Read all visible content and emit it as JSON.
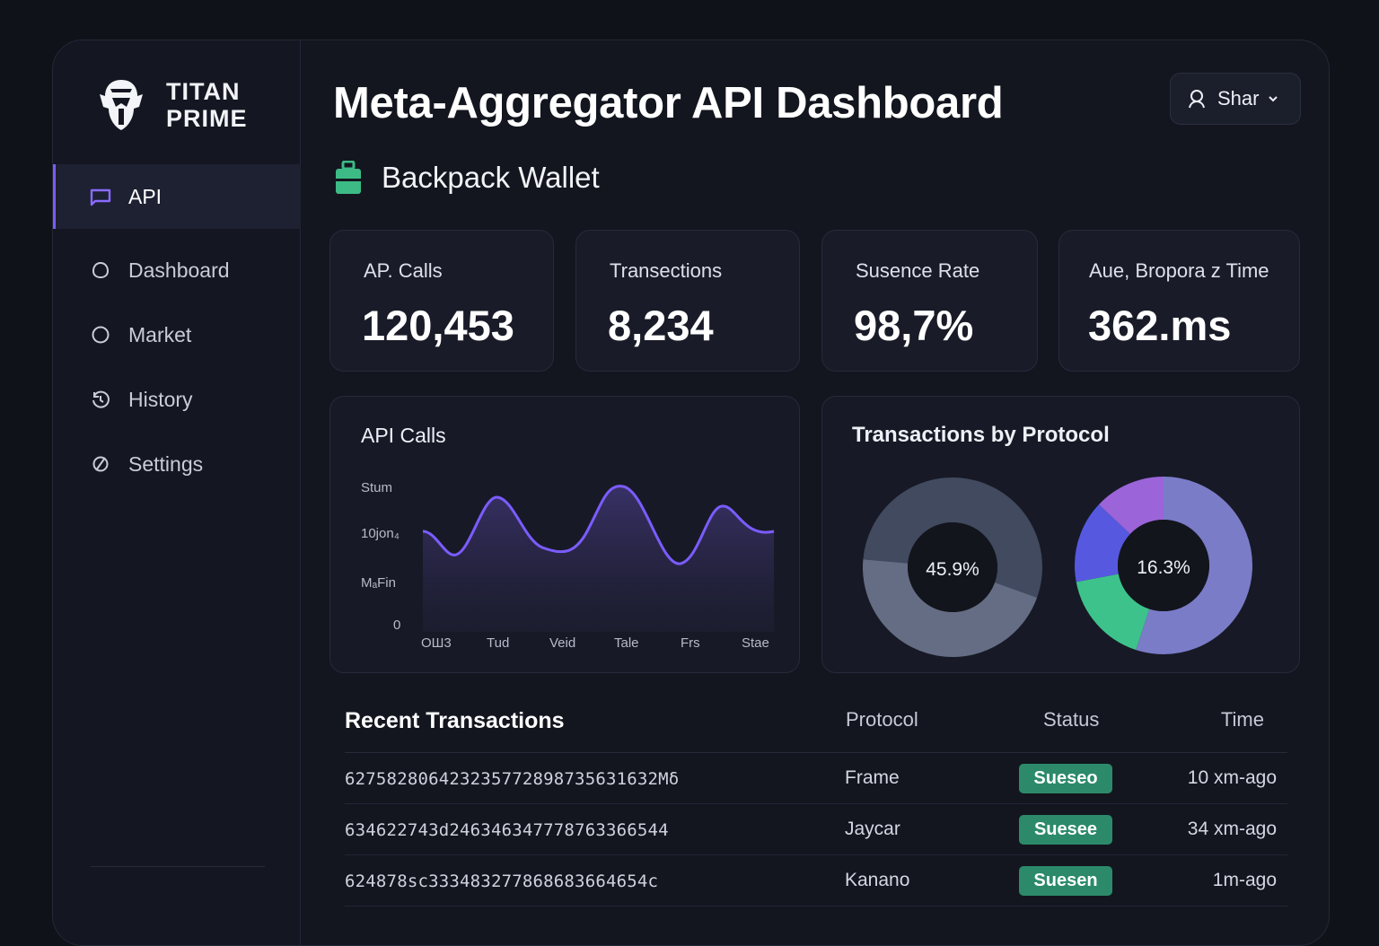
{
  "brand": {
    "line1": "TITAN",
    "line2": "PRIME"
  },
  "sidebar": {
    "items": [
      {
        "label": "API",
        "icon": "api-icon",
        "active": true
      },
      {
        "label": "Dashboard",
        "icon": "dashboard-icon"
      },
      {
        "label": "Market",
        "icon": "market-icon"
      },
      {
        "label": "History",
        "icon": "history-icon"
      },
      {
        "label": "Settings",
        "icon": "settings-icon"
      }
    ]
  },
  "header": {
    "title": "Meta-Aggregator API Dashboard",
    "user_label": "Shar"
  },
  "wallet": {
    "name": "Backpack Wallet",
    "color": "#3dbb86"
  },
  "stats": [
    {
      "label": "AP. Calls",
      "value": "120,453"
    },
    {
      "label": "Transections",
      "value": "8,234"
    },
    {
      "label": "Susence Rate",
      "value": "98,7%"
    },
    {
      "label": "Aue, Bropora z Time",
      "value": "362.ms"
    }
  ],
  "api_chart": {
    "title": "API Calls",
    "chart_data": {
      "type": "area",
      "y_tick_labels": [
        "Stum",
        "10jon₄",
        "MₐFin",
        "0"
      ],
      "x_tick_labels": [
        "OШ3",
        "Tud",
        "Veid",
        "Tale",
        "Frs",
        "Stae"
      ],
      "line_color": "#7b5cff"
    }
  },
  "protocol_chart": {
    "title": "Transactions by Protocol",
    "chart_data": [
      {
        "type": "pie",
        "center_label": "45.9%",
        "slices": [
          {
            "value": 54.1,
            "color": "#414a5e"
          },
          {
            "value": 45.9,
            "color": "#656d84"
          }
        ]
      },
      {
        "type": "pie",
        "center_label": "16.3%",
        "slices": [
          {
            "value": 55,
            "color": "#7a7cc8"
          },
          {
            "value": 17,
            "color": "#3ec28c"
          },
          {
            "value": 15,
            "color": "#5659e0"
          },
          {
            "value": 13,
            "color": "#9b64d8"
          }
        ]
      }
    ]
  },
  "transactions": {
    "title": "Recent Transactions",
    "columns": {
      "protocol": "Protocol",
      "status": "Status",
      "time": "Time"
    },
    "rows": [
      {
        "hash": "6275828064232357728987356316​32Mδ",
        "protocol": "Frame",
        "status": "Sueseo",
        "time": "10 xm-ago"
      },
      {
        "hash": "634622743d246346347778763366544",
        "protocol": "Jaycar",
        "status": "Suesee",
        "time": "34 xm-ago"
      },
      {
        "hash": "624878sc333483277868683664654c",
        "protocol": "Kanano",
        "status": "Suesen",
        "time": "1m-ago"
      }
    ]
  }
}
